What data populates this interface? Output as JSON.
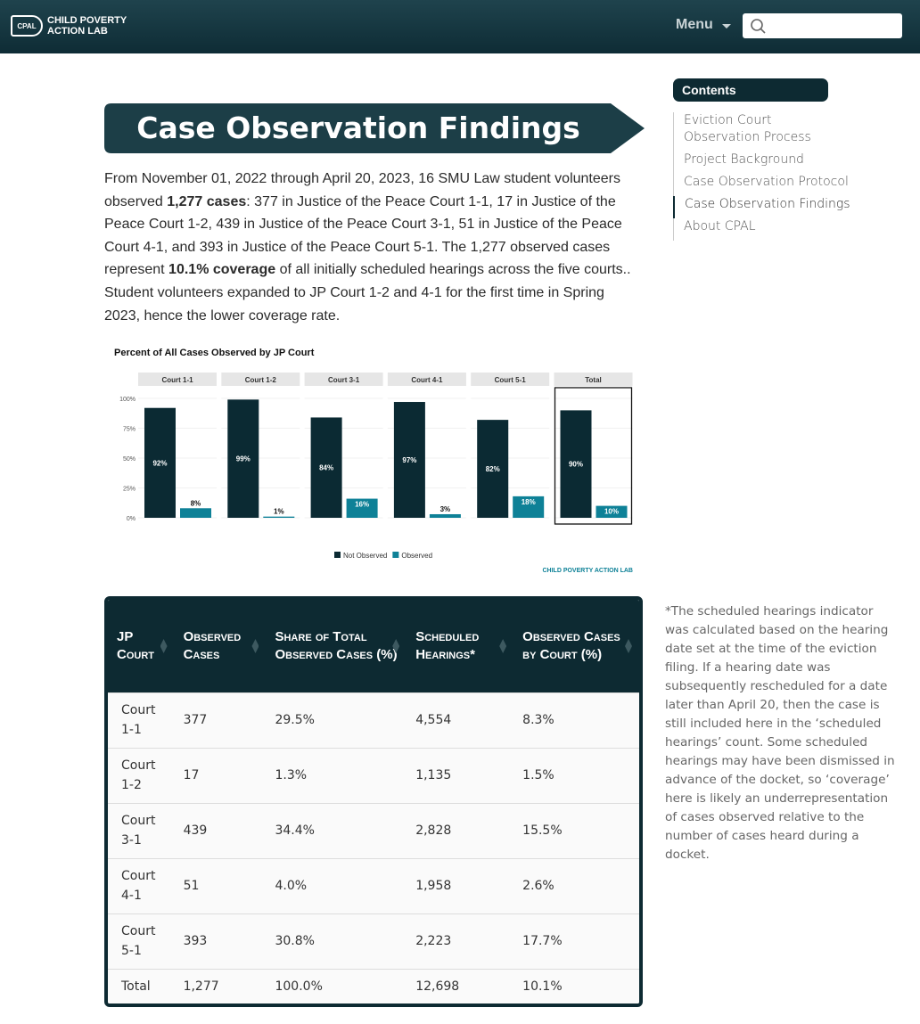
{
  "header": {
    "logo": "CPAL",
    "brand": "CHILD POVERTY ACTION LAB",
    "menu": "Menu"
  },
  "sidebar": {
    "title": "Contents",
    "items": [
      {
        "text": "Eviction Court Observation Process",
        "active": false
      },
      {
        "text": "Project Background",
        "active": false
      },
      {
        "text": "Case Observation Protocol",
        "active": false
      },
      {
        "text": "Case Observation Findings",
        "active": true
      },
      {
        "text": "About CPAL",
        "active": false
      }
    ],
    "note": "*The scheduled hearings indicator was calculated based on the hearing date set at the time of the eviction filing. If a hearing date was subsequently rescheduled for a date later than April 20, then the case is still included here in the ‘scheduled hearings’ count. Some scheduled hearings may have been dismissed in advance of the docket, so ‘coverage’ here is likely an underrepresentation of cases observed relative to the number of cases heard during a docket."
  },
  "heading": "Case Observation Findings",
  "paragraph": [
    {
      "text": "From November 01, 2022 through April 20, 2023, 16 SMU Law student volunteers observed ",
      "bold": false
    },
    {
      "text": "1,277 cases",
      "bold": true
    },
    {
      "text": ": 377 in Justice of the Peace Court 1-1, 17 in Justice of the Peace Court 1-2, 439 in Justice of the Peace Court 3-1, 51 in Justice of the Peace Court 4-1, and 393 in Justice of the Peace Court 5-1. The 1,277 observed cases represent ",
      "bold": false
    },
    {
      "text": "10.1% coverage",
      "bold": true
    },
    {
      "text": " of all initially scheduled hearings across the five courts.. Student volunteers expanded to JP Court 1-2 and 4-1 for the first time in Spring 2023, hence the lower coverage rate.",
      "bold": false
    }
  ],
  "chart_data": {
    "type": "bar",
    "title": "Percent of All Cases Observed by JP Court",
    "categories": [
      "Court 1-1",
      "Court 1-2",
      "Court 3-1",
      "Court 4-1",
      "Court 5-1",
      "Total"
    ],
    "series": [
      {
        "name": "Not Observed",
        "color": "#0b2a33",
        "values": [
          92,
          99,
          84,
          97,
          82,
          90
        ],
        "value_labels": [
          "92%",
          "99%",
          "84%",
          "97%",
          "82%",
          "90%"
        ]
      },
      {
        "name": "Observed",
        "color": "#0e8197",
        "values": [
          8,
          1,
          16,
          3,
          18,
          10
        ],
        "value_labels": [
          "8%",
          "1%",
          "16%",
          "3%",
          "18%",
          "10%"
        ]
      }
    ],
    "ylim": [
      0,
      100
    ],
    "yticks": [
      {
        "value": 0,
        "label": "0%"
      },
      {
        "value": 25,
        "label": "25%"
      },
      {
        "value": 50,
        "label": "50%"
      },
      {
        "value": 75,
        "label": "75%"
      },
      {
        "value": 100,
        "label": "100%"
      }
    ],
    "grid": true,
    "highlight_last": true,
    "credit": "CHILD POVERTY ACTION LAB"
  },
  "table": {
    "columns": [
      "JP Court",
      "Observed Cases",
      "Share of Total Observed Cases (%)",
      "Scheduled Hearings*",
      "Observed Cases by Court (%)"
    ],
    "rows": [
      [
        "Court 1-1",
        "377",
        "29.5%",
        "4,554",
        "8.3%"
      ],
      [
        "Court 1-2",
        "17",
        "1.3%",
        "1,135",
        "1.5%"
      ],
      [
        "Court 3-1",
        "439",
        "34.4%",
        "2,828",
        "15.5%"
      ],
      [
        "Court 4-1",
        "51",
        "4.0%",
        "1,958",
        "2.6%"
      ],
      [
        "Court 5-1",
        "393",
        "30.8%",
        "2,223",
        "17.7%"
      ],
      [
        "Total",
        "1,277",
        "100.0%",
        "12,698",
        "10.1%"
      ]
    ]
  }
}
